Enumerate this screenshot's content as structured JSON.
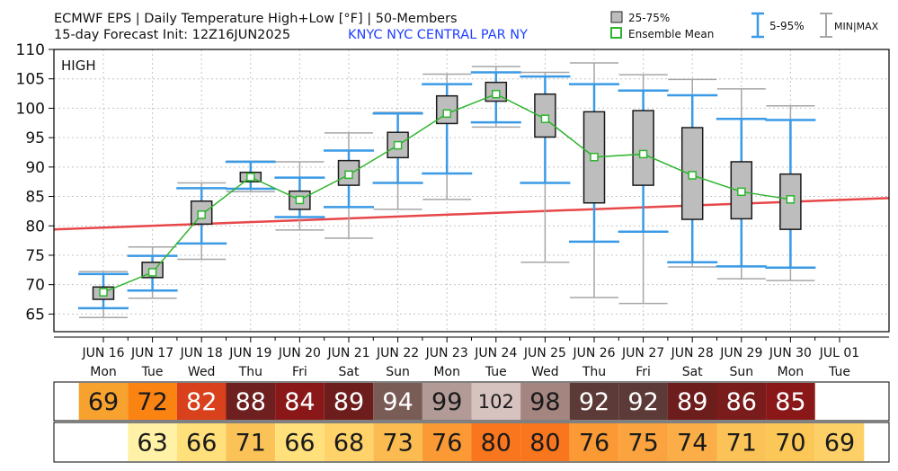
{
  "header": {
    "title_line1": "ECMWF EPS | Daily Temperature High+Low [°F] | 50-Members",
    "title_line2": "15-day Forecast Init: 12Z16JUN2025",
    "station": "KNYC  NYC CENTRAL PAR NY",
    "panel_label": "HIGH"
  },
  "legend": {
    "box_label": "25-75%",
    "mean_label": "Ensemble Mean",
    "whisker_label": "5-95%",
    "minmax_label": "MIN|MAX"
  },
  "colors": {
    "box_fill": "#bdbdbd",
    "mean": "#2db52d",
    "p5_95": "#3a9ae6",
    "minmax": "#a6a6a6",
    "normal": "#e8474a",
    "station_text": "#1f3fff"
  },
  "chart_data": {
    "type": "box",
    "title": "ECMWF EPS | Daily Temperature High+Low [°F] | 50-Members",
    "ylim": [
      62,
      110
    ],
    "yticks": [
      65,
      70,
      75,
      80,
      85,
      90,
      95,
      100,
      105,
      110
    ],
    "grid": true,
    "legend_position": "top-right",
    "categories": [
      {
        "date": "JUN 16",
        "dow": "Mon"
      },
      {
        "date": "JUN 17",
        "dow": "Tue"
      },
      {
        "date": "JUN 18",
        "dow": "Wed"
      },
      {
        "date": "JUN 19",
        "dow": "Thu"
      },
      {
        "date": "JUN 20",
        "dow": "Fri"
      },
      {
        "date": "JUN 21",
        "dow": "Sat"
      },
      {
        "date": "JUN 22",
        "dow": "Sun"
      },
      {
        "date": "JUN 23",
        "dow": "Mon"
      },
      {
        "date": "JUN 24",
        "dow": "Tue"
      },
      {
        "date": "JUN 25",
        "dow": "Wed"
      },
      {
        "date": "JUN 26",
        "dow": "Thu"
      },
      {
        "date": "JUN 27",
        "dow": "Fri"
      },
      {
        "date": "JUN 28",
        "dow": "Sat"
      },
      {
        "date": "JUN 29",
        "dow": "Sun"
      },
      {
        "date": "JUN 30",
        "dow": "Mon"
      },
      {
        "date": "JUL 01",
        "dow": "Tue"
      }
    ],
    "series": [
      {
        "date": "JUN 16",
        "min": 64.4,
        "p5": 66.0,
        "p25": 67.5,
        "mean": 68.7,
        "p75": 69.6,
        "p95": 71.8,
        "max": 72.2
      },
      {
        "date": "JUN 17",
        "min": 67.7,
        "p5": 69.0,
        "p25": 71.2,
        "mean": 72.1,
        "p75": 73.8,
        "p95": 74.9,
        "max": 76.4
      },
      {
        "date": "JUN 18",
        "min": 74.3,
        "p5": 77.0,
        "p25": 80.3,
        "mean": 81.9,
        "p75": 84.2,
        "p95": 86.4,
        "max": 87.3
      },
      {
        "date": "JUN 19",
        "min": 85.8,
        "p5": 86.3,
        "p25": 87.5,
        "mean": 88.3,
        "p75": 89.1,
        "p95": 90.9,
        "max": 91.0
      },
      {
        "date": "JUN 20",
        "min": 79.3,
        "p5": 81.5,
        "p25": 82.8,
        "mean": 84.4,
        "p75": 85.9,
        "p95": 88.2,
        "max": 90.9
      },
      {
        "date": "JUN 21",
        "min": 77.9,
        "p5": 83.2,
        "p25": 86.9,
        "mean": 88.7,
        "p75": 91.1,
        "p95": 92.8,
        "max": 95.8
      },
      {
        "date": "JUN 22",
        "min": 82.8,
        "p5": 87.3,
        "p25": 91.6,
        "mean": 93.7,
        "p75": 95.9,
        "p95": 99.1,
        "max": 99.3
      },
      {
        "date": "JUN 23",
        "min": 84.5,
        "p5": 88.9,
        "p25": 97.4,
        "mean": 99.1,
        "p75": 102.1,
        "p95": 104.1,
        "max": 105.8
      },
      {
        "date": "JUN 24",
        "min": 96.8,
        "p5": 97.6,
        "p25": 101.2,
        "mean": 102.4,
        "p75": 104.4,
        "p95": 106.1,
        "max": 107.1
      },
      {
        "date": "JUN 25",
        "min": 73.8,
        "p5": 87.3,
        "p25": 95.1,
        "mean": 98.2,
        "p75": 102.4,
        "p95": 105.4,
        "max": 106.1
      },
      {
        "date": "JUN 26",
        "min": 67.8,
        "p5": 77.3,
        "p25": 83.9,
        "mean": 91.7,
        "p75": 99.4,
        "p95": 104.1,
        "max": 107.7
      },
      {
        "date": "JUN 27",
        "min": 66.8,
        "p5": 79.0,
        "p25": 86.9,
        "mean": 92.2,
        "p75": 99.6,
        "p95": 103.0,
        "max": 105.7
      },
      {
        "date": "JUN 28",
        "min": 73.0,
        "p5": 73.8,
        "p25": 81.1,
        "mean": 88.6,
        "p75": 96.7,
        "p95": 102.2,
        "max": 104.9
      },
      {
        "date": "JUN 29",
        "min": 71.0,
        "p5": 73.1,
        "p25": 81.2,
        "mean": 85.8,
        "p75": 90.9,
        "p95": 98.2,
        "max": 103.3
      },
      {
        "date": "JUN 30",
        "min": 70.7,
        "p5": 72.9,
        "p25": 79.4,
        "mean": 84.5,
        "p75": 88.8,
        "p95": 98.0,
        "max": 100.4
      }
    ],
    "normal_line": {
      "x": [
        "JUN 16",
        "JUL 01"
      ],
      "y": [
        79.7,
        84.4
      ]
    },
    "high_values": [
      69,
      72,
      82,
      88,
      84,
      89,
      94,
      99,
      102,
      98,
      92,
      92,
      89,
      86,
      85,
      null
    ],
    "low_values": [
      null,
      63,
      66,
      71,
      66,
      68,
      73,
      76,
      80,
      80,
      76,
      75,
      74,
      71,
      70,
      69
    ],
    "high_colors": [
      "#f7a22e",
      "#fa8312",
      "#d9401c",
      "#6e1f1f",
      "#8b1818",
      "#6e1d1d",
      "#7a5c56",
      "#b29b96",
      "#d6c3c0",
      "#a4857f",
      "#5b3a37",
      "#5b3a37",
      "#6e1d1d",
      "#7a1c1c",
      "#8b1818",
      ""
    ],
    "low_colors": [
      "",
      "#fff1a6",
      "#ffe07a",
      "#fbc257",
      "#ffe07a",
      "#ffd36a",
      "#fbbb50",
      "#fb9a35",
      "#f9761f",
      "#f9761f",
      "#fb9a35",
      "#fba43f",
      "#fbae47",
      "#fbc257",
      "#fbc857",
      "#fdd067"
    ]
  }
}
